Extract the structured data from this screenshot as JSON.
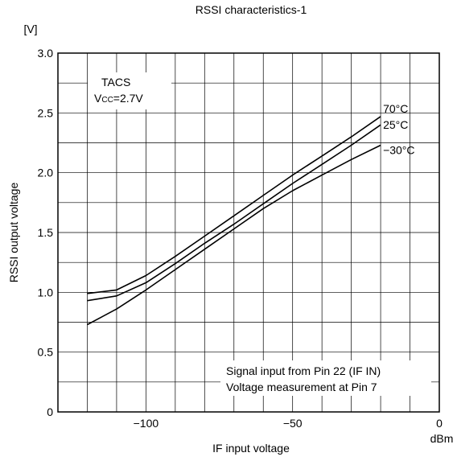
{
  "chart_data": {
    "type": "line",
    "title": "RSSI characteristics-1",
    "xlabel": "IF input voltage",
    "x_unit": "dBm",
    "ylabel": "RSSI output voltage",
    "y_unit": "[V]",
    "xlim": [
      -130,
      0
    ],
    "ylim": [
      0,
      3.0
    ],
    "x_ticks": [
      -100,
      -50,
      0
    ],
    "x_tick_labels": [
      "−100",
      "−50",
      "0"
    ],
    "y_ticks": [
      0,
      0.5,
      1.0,
      1.5,
      2.0,
      2.5,
      3.0
    ],
    "y_tick_labels": [
      "0",
      "0.5",
      "1.0",
      "1.5",
      "2.0",
      "2.5",
      "3.0"
    ],
    "grid": true,
    "annotations": {
      "condition_line1": "TACS",
      "condition_vcc_prefix": "V",
      "condition_vcc_sub": "CC",
      "condition_vcc_value": "=2.7V",
      "note_line1": "Signal input from Pin 22 (IF IN)",
      "note_line2": "Voltage measurement at Pin 7"
    },
    "series": [
      {
        "name": "70°C",
        "label": "70°C",
        "x": [
          -120,
          -110,
          -100,
          -90,
          -80,
          -70,
          -60,
          -50,
          -40,
          -30,
          -20
        ],
        "y": [
          0.99,
          1.02,
          1.14,
          1.3,
          1.47,
          1.64,
          1.81,
          1.98,
          2.14,
          2.3,
          2.47
        ]
      },
      {
        "name": "25°C",
        "label": "25°C",
        "x": [
          -120,
          -110,
          -100,
          -90,
          -80,
          -70,
          -60,
          -50,
          -40,
          -30,
          -20
        ],
        "y": [
          0.93,
          0.97,
          1.08,
          1.24,
          1.41,
          1.57,
          1.74,
          1.91,
          2.07,
          2.23,
          2.4
        ]
      },
      {
        "name": "−30°C",
        "label": "−30°C",
        "x": [
          -120,
          -110,
          -100,
          -90,
          -80,
          -70,
          -60,
          -50,
          -40,
          -30,
          -20
        ],
        "y": [
          0.73,
          0.86,
          1.02,
          1.19,
          1.36,
          1.53,
          1.7,
          1.85,
          1.98,
          2.11,
          2.23
        ]
      }
    ]
  }
}
